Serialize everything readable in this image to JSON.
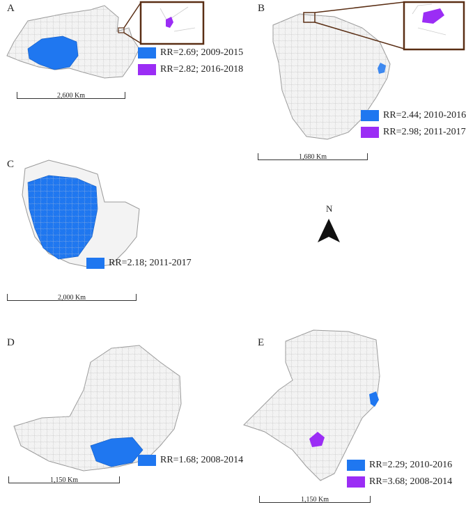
{
  "colors": {
    "cluster_blue": "#1f77f0",
    "cluster_purple": "#9b2df5",
    "inset_frame": "#5a2e14",
    "region_fill": "#f3f3f3",
    "border": "#999999"
  },
  "north_arrow": {
    "label": "N"
  },
  "panels": [
    {
      "letter": "A",
      "scale_label": "2,600 Km",
      "legend": [
        {
          "color": "#1f77f0",
          "label": "RR=2.69; 2009-2015"
        },
        {
          "color": "#9b2df5",
          "label": "RR=2.82; 2016-2018"
        }
      ]
    },
    {
      "letter": "B",
      "scale_label": "1,680 Km",
      "legend": [
        {
          "color": "#1f77f0",
          "label": "RR=2.44; 2010-2016"
        },
        {
          "color": "#9b2df5",
          "label": "RR=2.98; 2011-2017"
        }
      ]
    },
    {
      "letter": "C",
      "scale_label": "2,000 Km",
      "legend": [
        {
          "color": "#1f77f0",
          "label": "RR=2.18; 2011-2017"
        }
      ]
    },
    {
      "letter": "D",
      "scale_label": "1,150 Km",
      "legend": [
        {
          "color": "#1f77f0",
          "label": "RR=1.68; 2008-2014"
        }
      ]
    },
    {
      "letter": "E",
      "scale_label": "1,150 Km",
      "legend": [
        {
          "color": "#1f77f0",
          "label": "RR=2.29; 2010-2016"
        },
        {
          "color": "#9b2df5",
          "label": "RR=3.68; 2008-2014"
        }
      ]
    }
  ]
}
